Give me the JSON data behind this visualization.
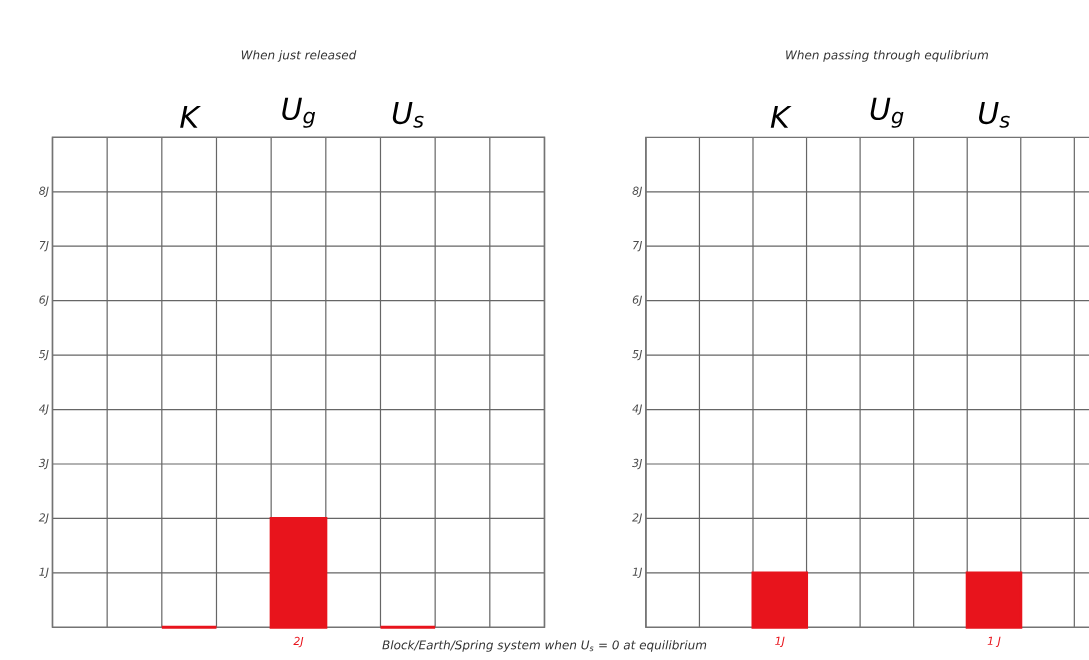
{
  "chart_data": [
    {
      "type": "bar",
      "title": "When just released",
      "categories": [
        "K",
        "U$_{g}$",
        "U$_{s}$"
      ],
      "values": [
        0,
        2,
        0
      ],
      "value_labels": [
        null,
        "2J",
        null
      ],
      "color": "#e8141c",
      "ylim": [
        0,
        9
      ],
      "yticks": [
        {
          "value": 1,
          "label": "1J"
        },
        {
          "value": 2,
          "label": "2J"
        },
        {
          "value": 3,
          "label": "3J"
        },
        {
          "value": 4,
          "label": "4J"
        },
        {
          "value": 5,
          "label": "5J"
        },
        {
          "value": 6,
          "label": "6J"
        },
        {
          "value": 7,
          "label": "7J"
        },
        {
          "value": 8,
          "label": "8J"
        }
      ],
      "grid": true
    },
    {
      "type": "bar",
      "title": "When passing through equlibrium",
      "categories": [
        "K",
        "U$_{g}$",
        "U$_{s}$"
      ],
      "values": [
        1,
        null,
        1
      ],
      "value_labels": [
        "1J",
        null,
        "1 J"
      ],
      "color": "#e8141c",
      "ylim": [
        0,
        9
      ],
      "yticks": [
        {
          "value": 1,
          "label": "1J"
        },
        {
          "value": 2,
          "label": "2J"
        },
        {
          "value": 3,
          "label": "3J"
        },
        {
          "value": 4,
          "label": "4J"
        },
        {
          "value": 5,
          "label": "5J"
        },
        {
          "value": 6,
          "label": "6J"
        },
        {
          "value": 7,
          "label": "7J"
        },
        {
          "value": 8,
          "label": "8J"
        }
      ],
      "grid": true,
      "annotations": [
        "Block/Earth/Spring system when U$_{s}$ = 0 at equilibrium"
      ]
    }
  ]
}
